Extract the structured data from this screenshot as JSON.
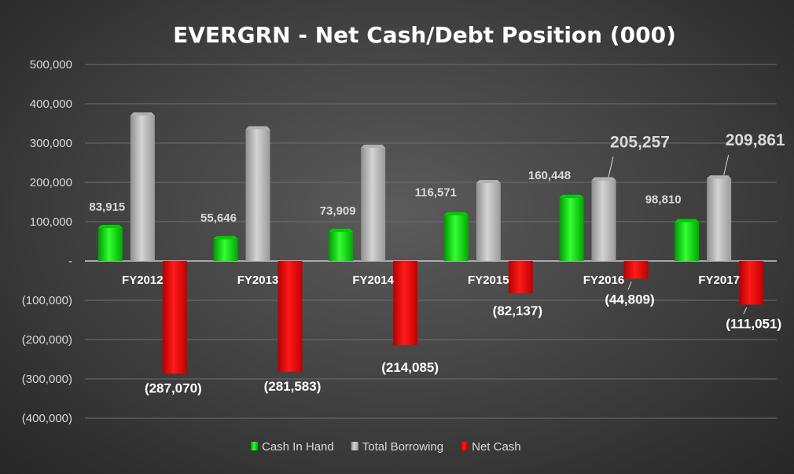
{
  "chart_data": {
    "type": "bar",
    "title": "EVERGRN - Net Cash/Debt Position (000)",
    "categories": [
      "FY2012",
      "FY2013",
      "FY2014",
      "FY2015",
      "FY2016",
      "FY2017"
    ],
    "series": [
      {
        "name": "Cash In Hand",
        "color": "#00ff00",
        "values": [
          83915,
          55646,
          73909,
          116571,
          160448,
          98810
        ],
        "labels": [
          "83,915",
          "55,646",
          "73,909",
          "116,571",
          "160,448",
          "98,810"
        ]
      },
      {
        "name": "Total Borrowing",
        "color": "#c0c0c0",
        "values": [
          370000,
          335000,
          288000,
          198000,
          205257,
          209861
        ],
        "labels": [
          "",
          "",
          "",
          "",
          "205,257",
          "209,861"
        ]
      },
      {
        "name": "Net Cash",
        "color": "#ff0000",
        "values": [
          -287070,
          -281583,
          -214085,
          -82137,
          -44809,
          -111051
        ],
        "labels": [
          "(287,070)",
          "(281,583)",
          "(214,085)",
          "(82,137)",
          "(44,809)",
          "(111,051)"
        ]
      }
    ],
    "yticks": [
      "500,000",
      "400,000",
      "300,000",
      "200,000",
      "100,000",
      "-",
      "(100,000)",
      "(200,000)",
      "(300,000)",
      "(400,000)"
    ],
    "ylim": [
      -400000,
      500000
    ],
    "grid": true,
    "legend_position": "bottom"
  }
}
